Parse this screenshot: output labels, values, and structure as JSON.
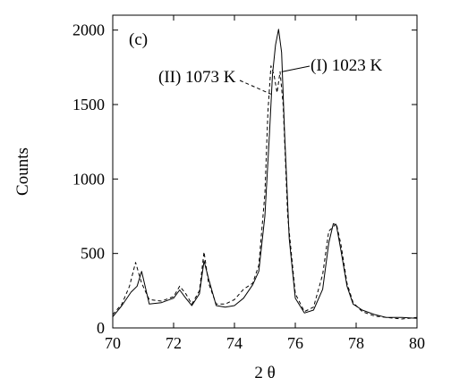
{
  "chart_data": {
    "type": "line",
    "panel_label": "(c)",
    "xlabel": "2 θ",
    "ylabel": "Counts",
    "xlim": [
      70,
      80
    ],
    "ylim": [
      0,
      2100
    ],
    "x_ticks": [
      "70",
      "72",
      "74",
      "76",
      "78",
      "80"
    ],
    "y_ticks": [
      "0",
      "500",
      "1000",
      "1500",
      "2000"
    ],
    "grid": false,
    "series": [
      {
        "name": "(I) 1023 K",
        "style": "solid",
        "color": "#000000",
        "x": [
          70.0,
          70.3,
          70.6,
          70.8,
          70.95,
          71.2,
          71.6,
          72.0,
          72.2,
          72.4,
          72.6,
          72.85,
          73.0,
          73.15,
          73.4,
          73.7,
          74.0,
          74.3,
          74.6,
          74.8,
          75.0,
          75.15,
          75.25,
          75.35,
          75.45,
          75.55,
          75.65,
          75.8,
          76.0,
          76.3,
          76.6,
          76.9,
          77.1,
          77.25,
          77.35,
          77.5,
          77.7,
          77.9,
          78.2,
          78.6,
          79.0,
          79.5,
          80.0
        ],
        "y": [
          75,
          150,
          240,
          280,
          380,
          160,
          170,
          200,
          255,
          200,
          150,
          230,
          450,
          330,
          150,
          140,
          150,
          200,
          290,
          380,
          750,
          1300,
          1700,
          1900,
          2005,
          1850,
          1300,
          600,
          200,
          100,
          120,
          260,
          570,
          700,
          690,
          520,
          280,
          160,
          120,
          90,
          70,
          70,
          65
        ]
      },
      {
        "name": "(II) 1073 K",
        "style": "dashed",
        "color": "#000000",
        "x": [
          70.0,
          70.3,
          70.55,
          70.75,
          70.95,
          71.2,
          71.6,
          72.0,
          72.2,
          72.4,
          72.6,
          72.85,
          73.0,
          73.15,
          73.4,
          73.7,
          74.0,
          74.3,
          74.6,
          74.8,
          75.0,
          75.1,
          75.2,
          75.3,
          75.4,
          75.5,
          75.6,
          75.75,
          76.0,
          76.3,
          76.6,
          76.9,
          77.1,
          77.25,
          77.35,
          77.5,
          77.7,
          77.9,
          78.2,
          78.6,
          79.0,
          79.5,
          80.0
        ],
        "y": [
          90,
          160,
          280,
          440,
          300,
          190,
          180,
          210,
          280,
          230,
          160,
          250,
          510,
          300,
          160,
          160,
          190,
          260,
          300,
          420,
          900,
          1450,
          1760,
          1700,
          1580,
          1720,
          1500,
          750,
          230,
          110,
          140,
          360,
          650,
          680,
          700,
          560,
          300,
          170,
          110,
          80,
          70,
          60,
          70
        ]
      }
    ],
    "annotations": [
      {
        "text": "(I) 1023 K",
        "series": 0,
        "x": 75.55,
        "y": 1720
      },
      {
        "text": "(II) 1073 K",
        "series": 1,
        "x": 75.2,
        "y": 1570
      }
    ]
  }
}
